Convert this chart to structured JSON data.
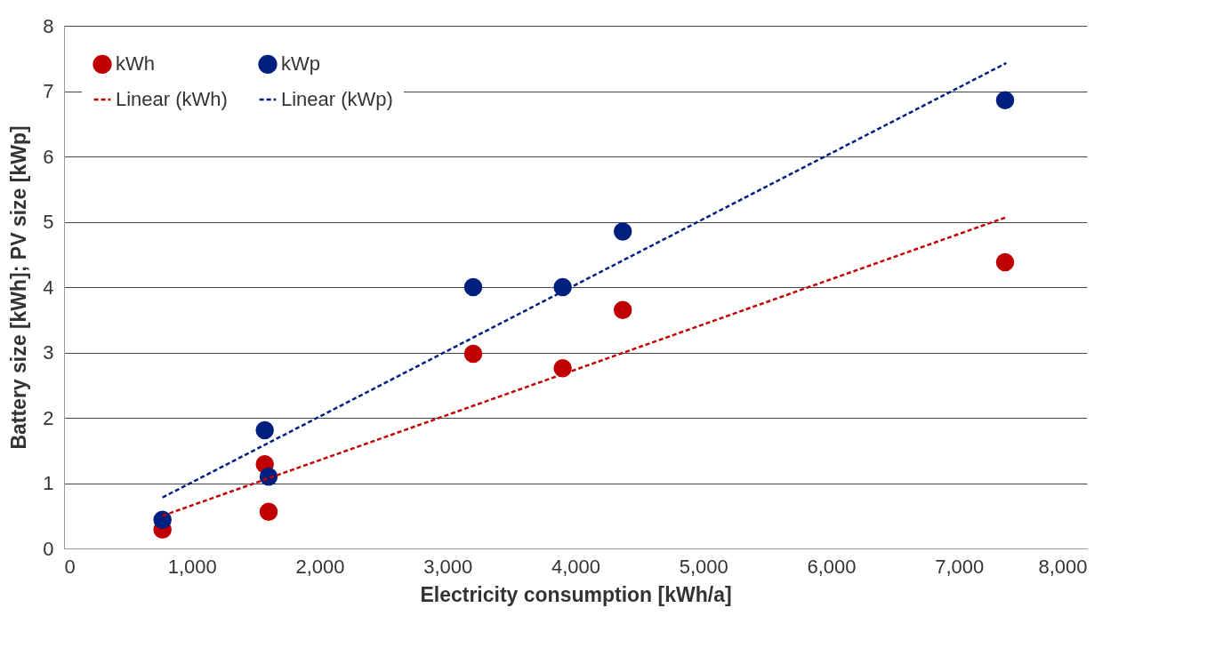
{
  "chart_data": {
    "type": "scatter",
    "xlabel": "Electricity consumption [kWh/a]",
    "ylabel": "Battery size [kWh]; PV size [kWp]",
    "series": [
      {
        "name": "kWh",
        "color": "#c00000",
        "marker": "circle",
        "x": [
          770,
          1570,
          1600,
          3200,
          3900,
          4370,
          7360
        ],
        "values": [
          0.29,
          1.29,
          0.56,
          2.98,
          2.76,
          3.65,
          4.38
        ]
      },
      {
        "name": "kWp",
        "color": "#002080",
        "marker": "circle",
        "x": [
          770,
          1570,
          1600,
          3200,
          3900,
          4370,
          7360
        ],
        "values": [
          0.44,
          1.81,
          1.1,
          4.0,
          4.0,
          4.85,
          6.86
        ]
      },
      {
        "name": "Linear (kWh)",
        "type": "line",
        "color": "#c00000",
        "line_style": "dashed",
        "x": [
          770,
          7370
        ],
        "values": [
          0.5,
          5.07
        ]
      },
      {
        "name": "Linear (kWp)",
        "type": "line",
        "color": "#002080",
        "line_style": "dashed",
        "x": [
          770,
          7370
        ],
        "values": [
          0.78,
          7.43
        ]
      }
    ],
    "xlim": [
      0,
      8000
    ],
    "xticks": [
      0,
      {
        "value": 1000,
        "label": "1,000"
      },
      {
        "value": 2000,
        "label": "2,000"
      },
      {
        "value": 3000,
        "label": "3,000"
      },
      {
        "value": 4000,
        "label": "4,000"
      },
      {
        "value": 5000,
        "label": "5,000"
      },
      {
        "value": 6000,
        "label": "6,000"
      },
      {
        "value": 7000,
        "label": "7,000"
      },
      {
        "value": 8000,
        "label": "8,000"
      }
    ],
    "ylim": [
      0,
      8
    ],
    "yticks": [
      0,
      1,
      2,
      3,
      4,
      5,
      6,
      7,
      8
    ],
    "grid": "y",
    "legend": "top left"
  }
}
